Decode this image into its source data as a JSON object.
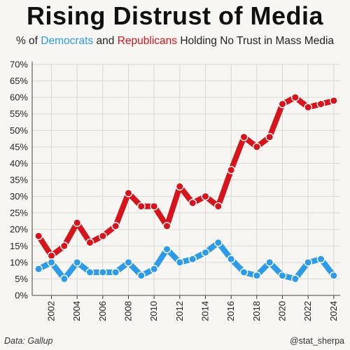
{
  "header": {
    "title": "Rising Distrust of Media",
    "subtitle_prefix": "% of ",
    "subtitle_dem": "Democrats",
    "subtitle_mid": " and ",
    "subtitle_rep": "Republicans",
    "subtitle_suffix": " Holding No Trust in Mass Media"
  },
  "footer": {
    "source": "Data: Gallup",
    "credit": "@stat_sherpa"
  },
  "colors": {
    "democrats": "#2e9be8",
    "republicans": "#d6141b",
    "background": "#f7f6f2"
  },
  "chart_data": {
    "type": "line",
    "title": "Rising Distrust of Media",
    "subtitle": "% of Democrats and Republicans Holding No Trust in Mass Media",
    "xlabel": "",
    "ylabel": "",
    "x": [
      2001,
      2002,
      2003,
      2004,
      2005,
      2006,
      2007,
      2008,
      2009,
      2010,
      2011,
      2012,
      2013,
      2014,
      2015,
      2016,
      2017,
      2018,
      2019,
      2020,
      2021,
      2022,
      2023,
      2024
    ],
    "xlim": [
      2000.5,
      2024.5
    ],
    "ylim": [
      0,
      70
    ],
    "grid": true,
    "legend": "none",
    "x_ticks": [
      "2002",
      "2004",
      "2006",
      "2008",
      "2010",
      "2012",
      "2014",
      "2016",
      "2018",
      "2020",
      "2022",
      "2024"
    ],
    "y_ticks": [
      "0%",
      "5%",
      "10%",
      "15%",
      "20%",
      "25%",
      "30%",
      "35%",
      "40%",
      "45%",
      "50%",
      "55%",
      "60%",
      "65%",
      "70%"
    ],
    "series": [
      {
        "name": "Republicans",
        "color": "#d6141b",
        "values": [
          18,
          12,
          15,
          22,
          16,
          18,
          21,
          31,
          27,
          27,
          21,
          33,
          28,
          30,
          27,
          38,
          48,
          45,
          48,
          58,
          60,
          57,
          58,
          59
        ]
      },
      {
        "name": "Democrats",
        "color": "#2e9be8",
        "values": [
          8,
          10,
          5,
          10,
          7,
          7,
          7,
          10,
          6,
          8,
          14,
          10,
          11,
          13,
          16,
          11,
          7,
          6,
          10,
          6,
          5,
          10,
          11,
          6
        ]
      }
    ],
    "source": "Data: Gallup",
    "credit": "@stat_sherpa"
  }
}
